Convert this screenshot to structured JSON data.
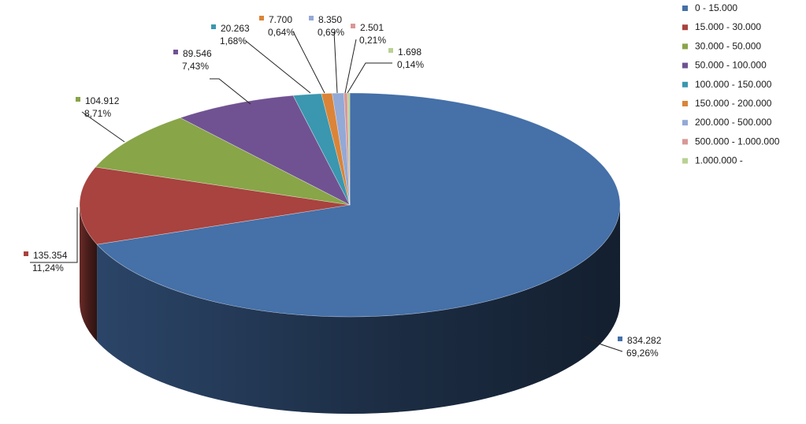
{
  "chart_data": {
    "type": "pie",
    "three_d": true,
    "legend_position": "right",
    "title": "",
    "categories": [
      "0 - 15.000",
      "15.000 - 30.000",
      "30.000 - 50.000",
      "50.000 - 100.000",
      "100.000 - 150.000",
      "150.000 - 200.000",
      "200.000 - 500.000",
      "500.000 - 1.000.000",
      "1.000.000 -"
    ],
    "values": [
      834282,
      135354,
      104912,
      89546,
      20263,
      7700,
      8350,
      2501,
      1698
    ],
    "value_labels": [
      "834.282",
      "135.354",
      "104.912",
      "89.546",
      "20.263",
      "7.700",
      "8.350",
      "2.501",
      "1.698"
    ],
    "percent_labels": [
      "69,26%",
      "11,24%",
      "8,71%",
      "7,43%",
      "1,68%",
      "0,64%",
      "0,69%",
      "0,21%",
      "0,14%"
    ],
    "colors": [
      "#4570a8",
      "#a8433f",
      "#88a548",
      "#705292",
      "#3a97af",
      "#db8438",
      "#93a9d6",
      "#d99896",
      "#b9d193"
    ]
  }
}
